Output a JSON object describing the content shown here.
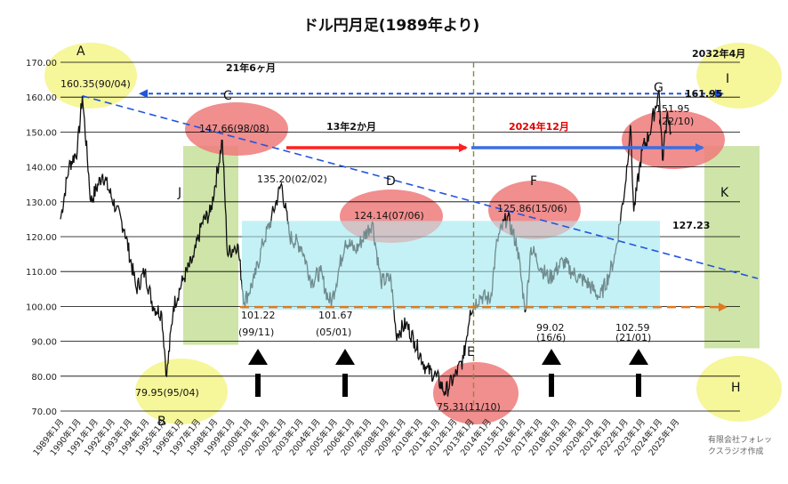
{
  "chart_data": {
    "type": "line",
    "title": "ドル円月足(1989年より)",
    "ylim": [
      70,
      170
    ],
    "y_ticks": [
      "70.00",
      "80.00",
      "90.00",
      "100.00",
      "110.00",
      "120.00",
      "130.00",
      "140.00",
      "150.00",
      "160.00",
      "170.00"
    ],
    "x_tick_labels": [
      "1989年1月",
      "1990年1月",
      "1991年1月",
      "1992年1月",
      "1993年1月",
      "1994年1月",
      "1995年1月",
      "1996年1月",
      "1997年1月",
      "1998年1月",
      "1999年1月",
      "2000年1月",
      "2001年1月",
      "2002年1月",
      "2003年1月",
      "2004年1月",
      "2005年1月",
      "2006年1月",
      "2007年1月",
      "2008年1月",
      "2009年1月",
      "2010年1月",
      "2011年1月",
      "2012年1月",
      "2013年1月",
      "2014年1月",
      "2015年1月",
      "2016年1月",
      "2017年1月",
      "2018年1月",
      "2019年1月",
      "2020年1月",
      "2021年1月",
      "2022年1月",
      "2023年1月",
      "2024年1月",
      "2025年1月"
    ],
    "x_range": [
      1989.0,
      2025.5
    ],
    "series": [
      {
        "points": [
          [
            1989.0,
            125
          ],
          [
            1989.5,
            140
          ],
          [
            1990.0,
            145
          ],
          [
            1990.3,
            160.35
          ],
          [
            1990.8,
            130
          ],
          [
            1991.5,
            138
          ],
          [
            1992.3,
            128
          ],
          [
            1992.8,
            122
          ],
          [
            1993.5,
            105
          ],
          [
            1994.0,
            110
          ],
          [
            1994.5,
            100
          ],
          [
            1995.0,
            98
          ],
          [
            1995.3,
            79.95
          ],
          [
            1995.7,
            100
          ],
          [
            1996.3,
            108
          ],
          [
            1996.9,
            114
          ],
          [
            1997.4,
            124
          ],
          [
            1997.9,
            127
          ],
          [
            1998.6,
            147.66
          ],
          [
            1998.9,
            115
          ],
          [
            1999.5,
            118
          ],
          [
            1999.9,
            101.22
          ],
          [
            2000.5,
            108
          ],
          [
            2001.0,
            118
          ],
          [
            2001.5,
            125
          ],
          [
            2002.1,
            135.2
          ],
          [
            2002.6,
            120
          ],
          [
            2003.3,
            117
          ],
          [
            2003.9,
            107
          ],
          [
            2004.4,
            110
          ],
          [
            2004.9,
            102
          ],
          [
            2005.1,
            101.67
          ],
          [
            2005.9,
            119
          ],
          [
            2006.5,
            116
          ],
          [
            2007.5,
            124.14
          ],
          [
            2008.0,
            107
          ],
          [
            2008.6,
            108
          ],
          [
            2008.9,
            92
          ],
          [
            2009.5,
            95
          ],
          [
            2010.0,
            90
          ],
          [
            2010.7,
            82
          ],
          [
            2011.3,
            80
          ],
          [
            2011.8,
            75.31
          ],
          [
            2012.4,
            80
          ],
          [
            2012.9,
            85
          ],
          [
            2013.3,
            99
          ],
          [
            2013.9,
            103
          ],
          [
            2014.5,
            102
          ],
          [
            2014.9,
            119
          ],
          [
            2015.5,
            125.86
          ],
          [
            2016.1,
            117
          ],
          [
            2016.5,
            101
          ],
          [
            2016.6,
            99.02
          ],
          [
            2016.9,
            117
          ],
          [
            2017.5,
            111
          ],
          [
            2018.0,
            108
          ],
          [
            2018.8,
            113
          ],
          [
            2019.3,
            110
          ],
          [
            2019.8,
            108
          ],
          [
            2020.2,
            107
          ],
          [
            2021.0,
            102.59
          ],
          [
            2021.6,
            110
          ],
          [
            2021.9,
            115
          ],
          [
            2022.5,
            135
          ],
          [
            2022.8,
            151.95
          ],
          [
            2023.0,
            127.23
          ],
          [
            2023.5,
            145
          ],
          [
            2023.9,
            149
          ],
          [
            2024.5,
            161.95
          ],
          [
            2024.7,
            142
          ],
          [
            2025.0,
            156
          ],
          [
            2025.2,
            150
          ]
        ]
      }
    ],
    "annotations": {
      "A": "A",
      "B": "B",
      "C": "C",
      "D": "D",
      "E": "E",
      "F": "F",
      "G": "G",
      "H": "H",
      "I": "I",
      "J": "J",
      "K": "K",
      "peak_A": "160.35(90/04)",
      "low_B": "79.95(95/04)",
      "peak_C": "147.66(98/08)",
      "peak_D": "124.14(07/06)",
      "low_E": "75.31(11/10)",
      "peak_F": "125.86(15/06)",
      "peak_G": "151.95",
      "peak_G_date": "(22/10)",
      "peak_2024": "161.95",
      "low_2023": "127.23",
      "peak_2002": "135.20(02/02)",
      "low_1999": "101.22",
      "low_1999_date": "(99/11)",
      "low_2005": "101.67",
      "low_2005_date": "(05/01)",
      "low_2016": "99.02",
      "low_2016_date": "(16/6)",
      "low_2021": "102.59",
      "low_2021_date": "(21/01)",
      "span_21y": "21年6ヶ月",
      "date_2032": "2032年4月",
      "span_13y": "13年2か月",
      "date_2024": "2024年12月"
    },
    "colors": {
      "series": "#111111",
      "range_band": "#bff0f5",
      "green_zone": "#c6df9a",
      "yellow_circle": "#f5f58a",
      "red_circle": "#ef7a7a",
      "red_arrow": "#ff2020",
      "blue_arrow": "#3b6fe0",
      "dashed_blue": "#2255dd",
      "dashed_orange": "#e07820",
      "vertical_dashed": "#8a8a3a"
    },
    "grid": true
  },
  "credit_line1": "有限会社フォレッ",
  "credit_line2": "クスラジオ作成"
}
